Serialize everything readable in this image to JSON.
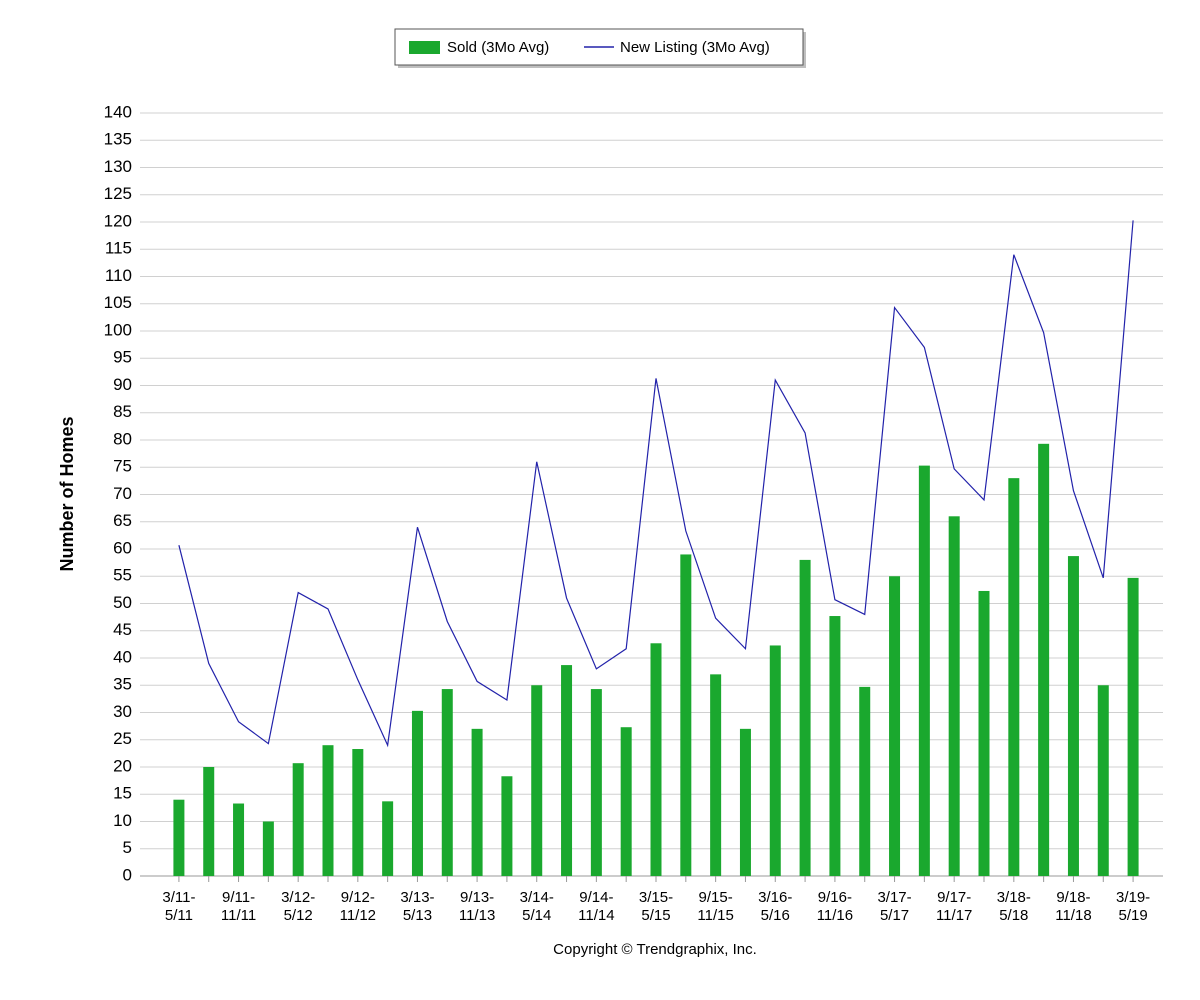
{
  "chart_data": {
    "type": "bar_line",
    "y_label": "Number of Homes",
    "footer": "Copyright © Trendgraphix, Inc.",
    "categories": [
      "3/11-5/11",
      null,
      "9/11-11/11",
      null,
      "3/12-5/12",
      null,
      "9/12-11/12",
      null,
      "3/13-5/13",
      null,
      "9/13-11/13",
      null,
      "3/14-5/14",
      null,
      "9/14-11/14",
      null,
      "3/15-5/15",
      null,
      "9/15-11/15",
      null,
      "3/16-5/16",
      null,
      "9/16-11/16",
      null,
      "3/17-5/17",
      null,
      "9/17-11/17",
      null,
      "3/18-5/18",
      null,
      "9/18-11/18",
      null,
      "3/19-5/19"
    ],
    "series": [
      {
        "name": "Sold (3Mo Avg)",
        "type": "bar",
        "color": "#1aa82e",
        "values": [
          14,
          20,
          13.3,
          10,
          20.7,
          24,
          23.3,
          13.7,
          30.3,
          34.3,
          27,
          18.3,
          35,
          38.7,
          34.3,
          27.3,
          42.7,
          59,
          37,
          27,
          42.3,
          58,
          47.7,
          34.7,
          55,
          75.3,
          66,
          52.3,
          73,
          79.3,
          58.7,
          35,
          54.7
        ]
      },
      {
        "name": "New Listing (3Mo Avg)",
        "type": "line",
        "color": "#2222aa",
        "values": [
          60.7,
          39,
          28.3,
          24.3,
          52,
          49,
          36,
          24,
          64,
          46.7,
          35.7,
          32.3,
          76,
          51,
          38,
          41.7,
          91.3,
          63.3,
          47.3,
          41.7,
          91,
          81.3,
          50.7,
          48,
          104.3,
          97,
          74.7,
          69,
          114,
          99.7,
          70.7,
          54.7,
          120.3
        ]
      }
    ],
    "ylim": [
      0,
      140
    ],
    "yticks": [
      0,
      5,
      10,
      15,
      20,
      25,
      30,
      35,
      40,
      45,
      50,
      55,
      60,
      65,
      70,
      75,
      80,
      85,
      90,
      95,
      100,
      105,
      110,
      115,
      120,
      125,
      130,
      135,
      140
    ],
    "grid": true
  }
}
